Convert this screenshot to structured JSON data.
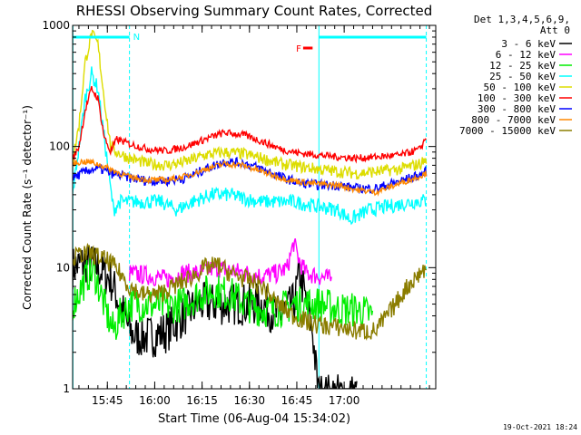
{
  "chart_data": {
    "type": "line",
    "title": "RHESSI Observing Summary Count Rates, Corrected",
    "xlabel": "Start Time (06-Aug-04 15:34:02)",
    "ylabel": "Corrected Count Rate (s⁻¹ detector⁻¹)",
    "yscale": "log",
    "ylim": [
      1,
      1000
    ],
    "xlim_min": [
      0,
      115
    ],
    "y_ticks": [
      {
        "value": 1,
        "label": "1"
      },
      {
        "value": 10,
        "label": "10"
      },
      {
        "value": 100,
        "label": "100"
      },
      {
        "value": 1000,
        "label": "1000"
      }
    ],
    "x_ticks": [
      {
        "value": 11,
        "label": "15:45"
      },
      {
        "value": 26,
        "label": "16:00"
      },
      {
        "value": 41,
        "label": "16:15"
      },
      {
        "value": 56,
        "label": "16:30"
      },
      {
        "value": 71,
        "label": "16:45"
      },
      {
        "value": 86,
        "label": "17:00"
      }
    ],
    "detectors": "Det 1,3,4,5,6,9,",
    "attenuator": "Att 0",
    "footer_date": "19-Oct-2021 18:24",
    "night_flag": {
      "label": "N",
      "start": 0,
      "end": 18,
      "level": 800
    },
    "flare_flag": {
      "label": "F",
      "start": 73,
      "end": 76,
      "level": 650
    },
    "saa_flag": {
      "start": 78,
      "end": 112,
      "level": 800
    },
    "vlines": [
      {
        "x": 0.1,
        "style": "solid"
      },
      {
        "x": 18,
        "style": "dashed"
      },
      {
        "x": 78,
        "style": "solid"
      },
      {
        "x": 112,
        "style": "dashed"
      }
    ],
    "series": [
      {
        "name": "3 - 6 keV",
        "color": "#000000",
        "noise": 0.18,
        "points": [
          [
            0,
            10
          ],
          [
            4,
            11
          ],
          [
            8,
            10
          ],
          [
            12,
            8
          ],
          [
            15,
            5
          ],
          [
            18,
            3
          ],
          [
            20,
            2.7
          ],
          [
            25,
            2.7
          ],
          [
            30,
            3
          ],
          [
            35,
            4
          ],
          [
            40,
            5
          ],
          [
            45,
            5
          ],
          [
            50,
            5
          ],
          [
            55,
            5
          ],
          [
            60,
            5
          ],
          [
            65,
            4
          ],
          [
            68,
            4.5
          ],
          [
            70,
            5
          ],
          [
            72,
            9
          ],
          [
            74,
            5
          ],
          [
            76,
            3
          ],
          [
            77,
            1.5
          ],
          [
            78,
            0.9
          ],
          [
            80,
            0.9
          ],
          [
            86,
            0.9
          ],
          [
            90,
            0.9
          ]
        ]
      },
      {
        "name": "6 - 12 keV",
        "color": "#ff00ff",
        "noise": 0.08,
        "points": [
          [
            18,
            9
          ],
          [
            25,
            8.5
          ],
          [
            30,
            8
          ],
          [
            35,
            9
          ],
          [
            40,
            9
          ],
          [
            45,
            10
          ],
          [
            50,
            9.5
          ],
          [
            55,
            9
          ],
          [
            60,
            8.5
          ],
          [
            65,
            9
          ],
          [
            68,
            10
          ],
          [
            70,
            16
          ],
          [
            72,
            11
          ],
          [
            74,
            9
          ],
          [
            78,
            8.5
          ],
          [
            82,
            8
          ]
        ]
      },
      {
        "name": "12 - 25 keV",
        "color": "#00ee00",
        "noise": 0.15,
        "points": [
          [
            0,
            5
          ],
          [
            3,
            7
          ],
          [
            5,
            9
          ],
          [
            7,
            9
          ],
          [
            9,
            6
          ],
          [
            11,
            4
          ],
          [
            13,
            3
          ],
          [
            15,
            4
          ],
          [
            18,
            5
          ],
          [
            22,
            5
          ],
          [
            30,
            4.8
          ],
          [
            35,
            5
          ],
          [
            40,
            6
          ],
          [
            45,
            6.5
          ],
          [
            50,
            6
          ],
          [
            55,
            5
          ],
          [
            60,
            4.5
          ],
          [
            65,
            4.5
          ],
          [
            70,
            5
          ],
          [
            75,
            5
          ],
          [
            78,
            5
          ],
          [
            85,
            4.5
          ],
          [
            90,
            4.5
          ],
          [
            95,
            4
          ]
        ]
      },
      {
        "name": "25 - 50 keV",
        "color": "#00ffff",
        "noise": 0.06,
        "points": [
          [
            0,
            40
          ],
          [
            2,
            100
          ],
          [
            4,
            250
          ],
          [
            6,
            400
          ],
          [
            8,
            300
          ],
          [
            10,
            120
          ],
          [
            12,
            45
          ],
          [
            13,
            30
          ],
          [
            15,
            35
          ],
          [
            20,
            35
          ],
          [
            28,
            35
          ],
          [
            33,
            30
          ],
          [
            38,
            35
          ],
          [
            44,
            40
          ],
          [
            50,
            40
          ],
          [
            55,
            37
          ],
          [
            60,
            35
          ],
          [
            65,
            35
          ],
          [
            70,
            35
          ],
          [
            75,
            33
          ],
          [
            78,
            32
          ],
          [
            84,
            30
          ],
          [
            88,
            25
          ],
          [
            94,
            30
          ],
          [
            100,
            32
          ],
          [
            108,
            35
          ],
          [
            112,
            36
          ]
        ]
      },
      {
        "name": "50 - 100 keV",
        "color": "#dddd00",
        "noise": 0.05,
        "points": [
          [
            0,
            75
          ],
          [
            2,
            150
          ],
          [
            4,
            500
          ],
          [
            6,
            850
          ],
          [
            8,
            700
          ],
          [
            10,
            250
          ],
          [
            12,
            100
          ],
          [
            14,
            90
          ],
          [
            18,
            80
          ],
          [
            24,
            72
          ],
          [
            30,
            70
          ],
          [
            36,
            75
          ],
          [
            42,
            85
          ],
          [
            48,
            90
          ],
          [
            54,
            87
          ],
          [
            60,
            80
          ],
          [
            66,
            72
          ],
          [
            72,
            68
          ],
          [
            78,
            65
          ],
          [
            84,
            62
          ],
          [
            90,
            60
          ],
          [
            96,
            62
          ],
          [
            104,
            65
          ],
          [
            110,
            72
          ],
          [
            112,
            78
          ]
        ]
      },
      {
        "name": "100 - 300 keV",
        "color": "#ff0000",
        "noise": 0.03,
        "points": [
          [
            0,
            78
          ],
          [
            2,
            100
          ],
          [
            4,
            200
          ],
          [
            6,
            300
          ],
          [
            8,
            250
          ],
          [
            10,
            120
          ],
          [
            12,
            90
          ],
          [
            14,
            115
          ],
          [
            18,
            105
          ],
          [
            24,
            95
          ],
          [
            30,
            92
          ],
          [
            36,
            100
          ],
          [
            42,
            115
          ],
          [
            48,
            130
          ],
          [
            54,
            125
          ],
          [
            60,
            110
          ],
          [
            66,
            95
          ],
          [
            72,
            88
          ],
          [
            78,
            85
          ],
          [
            84,
            82
          ],
          [
            90,
            80
          ],
          [
            96,
            82
          ],
          [
            104,
            85
          ],
          [
            110,
            95
          ],
          [
            112,
            120
          ]
        ]
      },
      {
        "name": "300 - 800 keV",
        "color": "#0000ff",
        "noise": 0.04,
        "points": [
          [
            0,
            55
          ],
          [
            3,
            60
          ],
          [
            6,
            65
          ],
          [
            9,
            65
          ],
          [
            12,
            60
          ],
          [
            15,
            58
          ],
          [
            18,
            55
          ],
          [
            24,
            52
          ],
          [
            30,
            52
          ],
          [
            36,
            55
          ],
          [
            42,
            65
          ],
          [
            48,
            75
          ],
          [
            54,
            73
          ],
          [
            60,
            65
          ],
          [
            66,
            56
          ],
          [
            72,
            50
          ],
          [
            78,
            48
          ],
          [
            84,
            48
          ],
          [
            90,
            45
          ],
          [
            96,
            45
          ],
          [
            104,
            52
          ],
          [
            110,
            58
          ],
          [
            112,
            62
          ]
        ]
      },
      {
        "name": "800 - 7000 keV",
        "color": "#ff8800",
        "noise": 0.025,
        "points": [
          [
            0,
            72
          ],
          [
            3,
            75
          ],
          [
            6,
            74
          ],
          [
            9,
            70
          ],
          [
            12,
            65
          ],
          [
            15,
            60
          ],
          [
            18,
            56
          ],
          [
            24,
            53
          ],
          [
            30,
            53
          ],
          [
            36,
            57
          ],
          [
            42,
            65
          ],
          [
            48,
            72
          ],
          [
            54,
            70
          ],
          [
            60,
            62
          ],
          [
            66,
            55
          ],
          [
            72,
            51
          ],
          [
            78,
            49
          ],
          [
            84,
            48
          ],
          [
            90,
            44
          ],
          [
            96,
            42
          ],
          [
            104,
            50
          ],
          [
            110,
            57
          ],
          [
            112,
            60
          ]
        ]
      },
      {
        "name": "7000 - 15000 keV",
        "color": "#8b7d00",
        "noise": 0.08,
        "points": [
          [
            0,
            12
          ],
          [
            3,
            13
          ],
          [
            6,
            13
          ],
          [
            9,
            12
          ],
          [
            12,
            11
          ],
          [
            15,
            9
          ],
          [
            18,
            7
          ],
          [
            22,
            6
          ],
          [
            27,
            6
          ],
          [
            32,
            7
          ],
          [
            38,
            8.5
          ],
          [
            42,
            10
          ],
          [
            46,
            10.5
          ],
          [
            50,
            9
          ],
          [
            55,
            8
          ],
          [
            60,
            7
          ],
          [
            65,
            5
          ],
          [
            70,
            4
          ],
          [
            75,
            3.5
          ],
          [
            80,
            3.3
          ],
          [
            85,
            3.2
          ],
          [
            90,
            3
          ],
          [
            96,
            3
          ],
          [
            101,
            4.5
          ],
          [
            106,
            7
          ],
          [
            110,
            9
          ],
          [
            112,
            10
          ]
        ]
      }
    ]
  }
}
